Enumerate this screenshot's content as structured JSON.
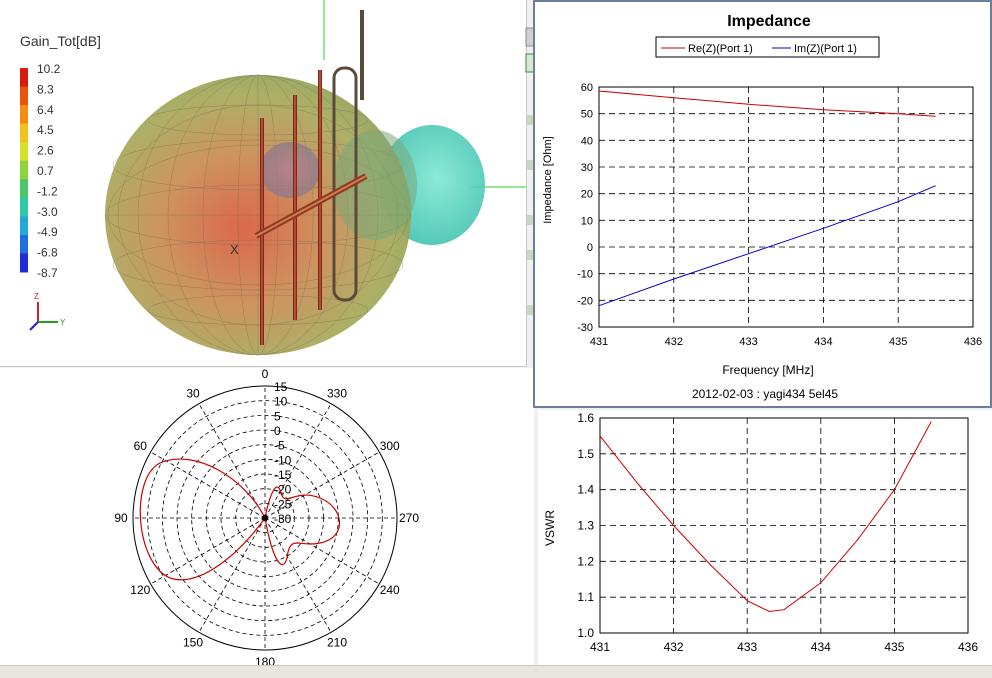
{
  "scene3d": {
    "legend_title": "Gain_Tot[dB]",
    "legend_ticks": [
      "10.2",
      "8.3",
      "6.4",
      "4.5",
      "2.6",
      "0.7",
      "-1.2",
      "-3.0",
      "-4.9",
      "-6.8",
      "-8.7"
    ],
    "colorbar_colors": [
      "#d61b0c",
      "#e9520f",
      "#f58c12",
      "#f1c21a",
      "#d6e22a",
      "#8fd13c",
      "#4bc46a",
      "#2ec9a8",
      "#22a9d6",
      "#1f6fe0",
      "#1d2bd8"
    ],
    "axis_x_label": "X",
    "triad": {
      "z": "Z",
      "y": "Y"
    }
  },
  "polar": {
    "radial_labels": [
      "15",
      "10",
      "5",
      "0",
      "-5",
      "-10",
      "-15",
      "-20",
      "-25",
      "-30"
    ],
    "angle_labels": [
      {
        "deg": 0,
        "label": "0"
      },
      {
        "deg": 30,
        "label": "30"
      },
      {
        "deg": 60,
        "label": "60"
      },
      {
        "deg": 90,
        "label": "90"
      },
      {
        "deg": 120,
        "label": "120"
      },
      {
        "deg": 150,
        "label": "150"
      },
      {
        "deg": 180,
        "label": "180"
      },
      {
        "deg": 210,
        "label": "210"
      },
      {
        "deg": 240,
        "label": "240"
      },
      {
        "deg": 270,
        "label": "270"
      },
      {
        "deg": 300,
        "label": "300"
      },
      {
        "deg": 330,
        "label": "330"
      }
    ],
    "rmin": -30,
    "rmax": 15
  },
  "impedance_chart": {
    "type": "line",
    "title": "Impedance",
    "xlabel": "Frequency [MHz]",
    "ylabel": "Impedance [Ohm]",
    "footer": "2012-02-03 :  yagi434 5el45",
    "xlim": [
      431,
      436
    ],
    "ylim": [
      -30,
      60
    ],
    "xticks": [
      "431",
      "432",
      "433",
      "434",
      "435",
      "436"
    ],
    "yticks": [
      "-30",
      "-20",
      "-10",
      "0",
      "10",
      "20",
      "30",
      "40",
      "50",
      "60"
    ],
    "legend_placement": "top-center",
    "series": [
      {
        "name": "Re(Z)(Port 1)",
        "color": "#cc0000",
        "x": [
          431,
          432,
          433,
          434,
          435,
          435.5
        ],
        "y": [
          58.5,
          56,
          53.5,
          51.5,
          50,
          49
        ]
      },
      {
        "name": "Im(Z)(Port 1)",
        "color": "#0000cc",
        "x": [
          431,
          432,
          433,
          434,
          435,
          435.5
        ],
        "y": [
          -22,
          -12,
          -2.5,
          7,
          17,
          23
        ]
      }
    ]
  },
  "vswr_chart": {
    "type": "line",
    "title": "",
    "xlabel": "",
    "ylabel": "VSWR",
    "xlim": [
      431,
      436
    ],
    "ylim": [
      1.0,
      1.6
    ],
    "xticks": [
      "431",
      "432",
      "433",
      "434",
      "435",
      "436"
    ],
    "yticks": [
      "1.0",
      "1.1",
      "1.2",
      "1.3",
      "1.4",
      "1.5",
      "1.6"
    ],
    "series": [
      {
        "color": "#cc0000",
        "x": [
          431,
          431.5,
          432,
          432.5,
          433,
          433.3,
          433.5,
          434,
          434.5,
          435,
          435.5
        ],
        "y": [
          1.55,
          1.42,
          1.3,
          1.19,
          1.09,
          1.06,
          1.065,
          1.14,
          1.26,
          1.4,
          1.59
        ]
      }
    ]
  }
}
